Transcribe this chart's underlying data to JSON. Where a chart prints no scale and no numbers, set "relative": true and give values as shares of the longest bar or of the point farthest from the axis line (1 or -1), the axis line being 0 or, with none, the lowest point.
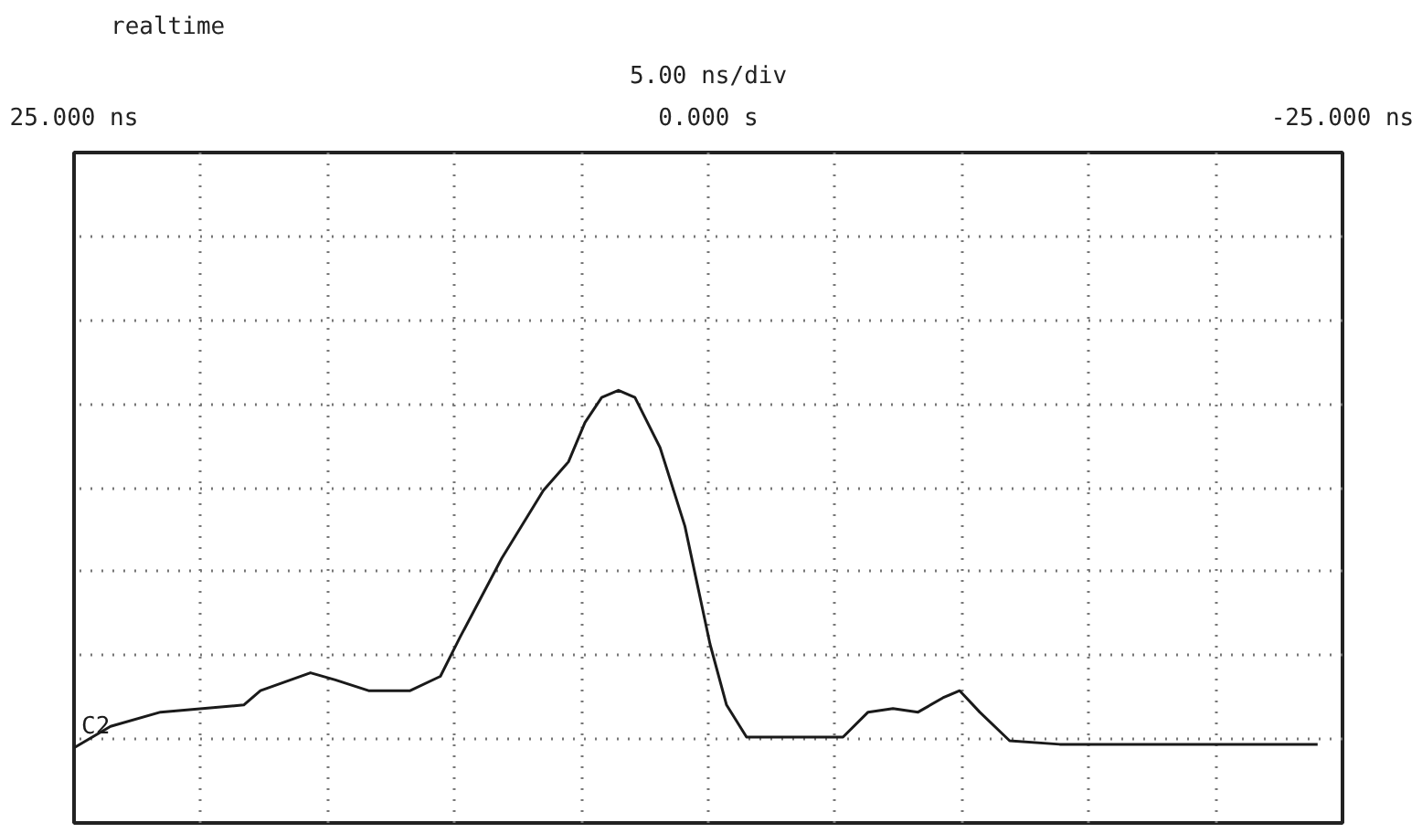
{
  "chart_data": {
    "type": "line",
    "title": "5.00 ns/div",
    "annotations": [
      "realtime"
    ],
    "relative": true,
    "xlim": [
      25,
      -25
    ],
    "xticks": [
      {
        "value": 25,
        "label": "25.000 ns"
      },
      {
        "value": 20,
        "label": null
      },
      {
        "value": 15,
        "label": null
      },
      {
        "value": 10,
        "label": null
      },
      {
        "value": 5,
        "label": null
      },
      {
        "value": 0,
        "label": "0.000 s"
      },
      {
        "value": -5,
        "label": null
      },
      {
        "value": -10,
        "label": null
      },
      {
        "value": -15,
        "label": null
      },
      {
        "value": -20,
        "label": null
      },
      {
        "value": -25,
        "label": "-25.000 ns"
      }
    ],
    "grid": true,
    "line_style": "solid",
    "tick_labels": "x",
    "series": [
      {
        "name": "C2",
        "color": "#1a1a1a",
        "x": [
          25.0,
          23.56,
          21.59,
          18.31,
          17.65,
          15.68,
          14.7,
          13.39,
          11.75,
          10.56,
          9.78,
          8.14,
          6.5,
          5.51,
          4.86,
          4.2,
          3.54,
          2.89,
          1.9,
          0.92,
          -0.07,
          -0.72,
          -1.51,
          -2.69,
          -4.0,
          -5.31,
          -6.3,
          -7.28,
          -8.27,
          -9.25,
          -9.91,
          -10.7,
          -11.88,
          -13.85,
          -17.13,
          -20.41,
          -24.02
        ],
        "values": [
          0,
          0.06,
          0.1,
          0.12,
          0.16,
          0.21,
          0.19,
          0.16,
          0.16,
          0.2,
          0.31,
          0.53,
          0.72,
          0.8,
          0.91,
          0.98,
          1.0,
          0.98,
          0.84,
          0.62,
          0.29,
          0.12,
          0.03,
          0.03,
          0.03,
          0.03,
          0.1,
          0.11,
          0.1,
          0.14,
          0.16,
          0.1,
          0.02,
          0.01,
          0.01,
          0.01,
          0.01
        ]
      }
    ]
  }
}
